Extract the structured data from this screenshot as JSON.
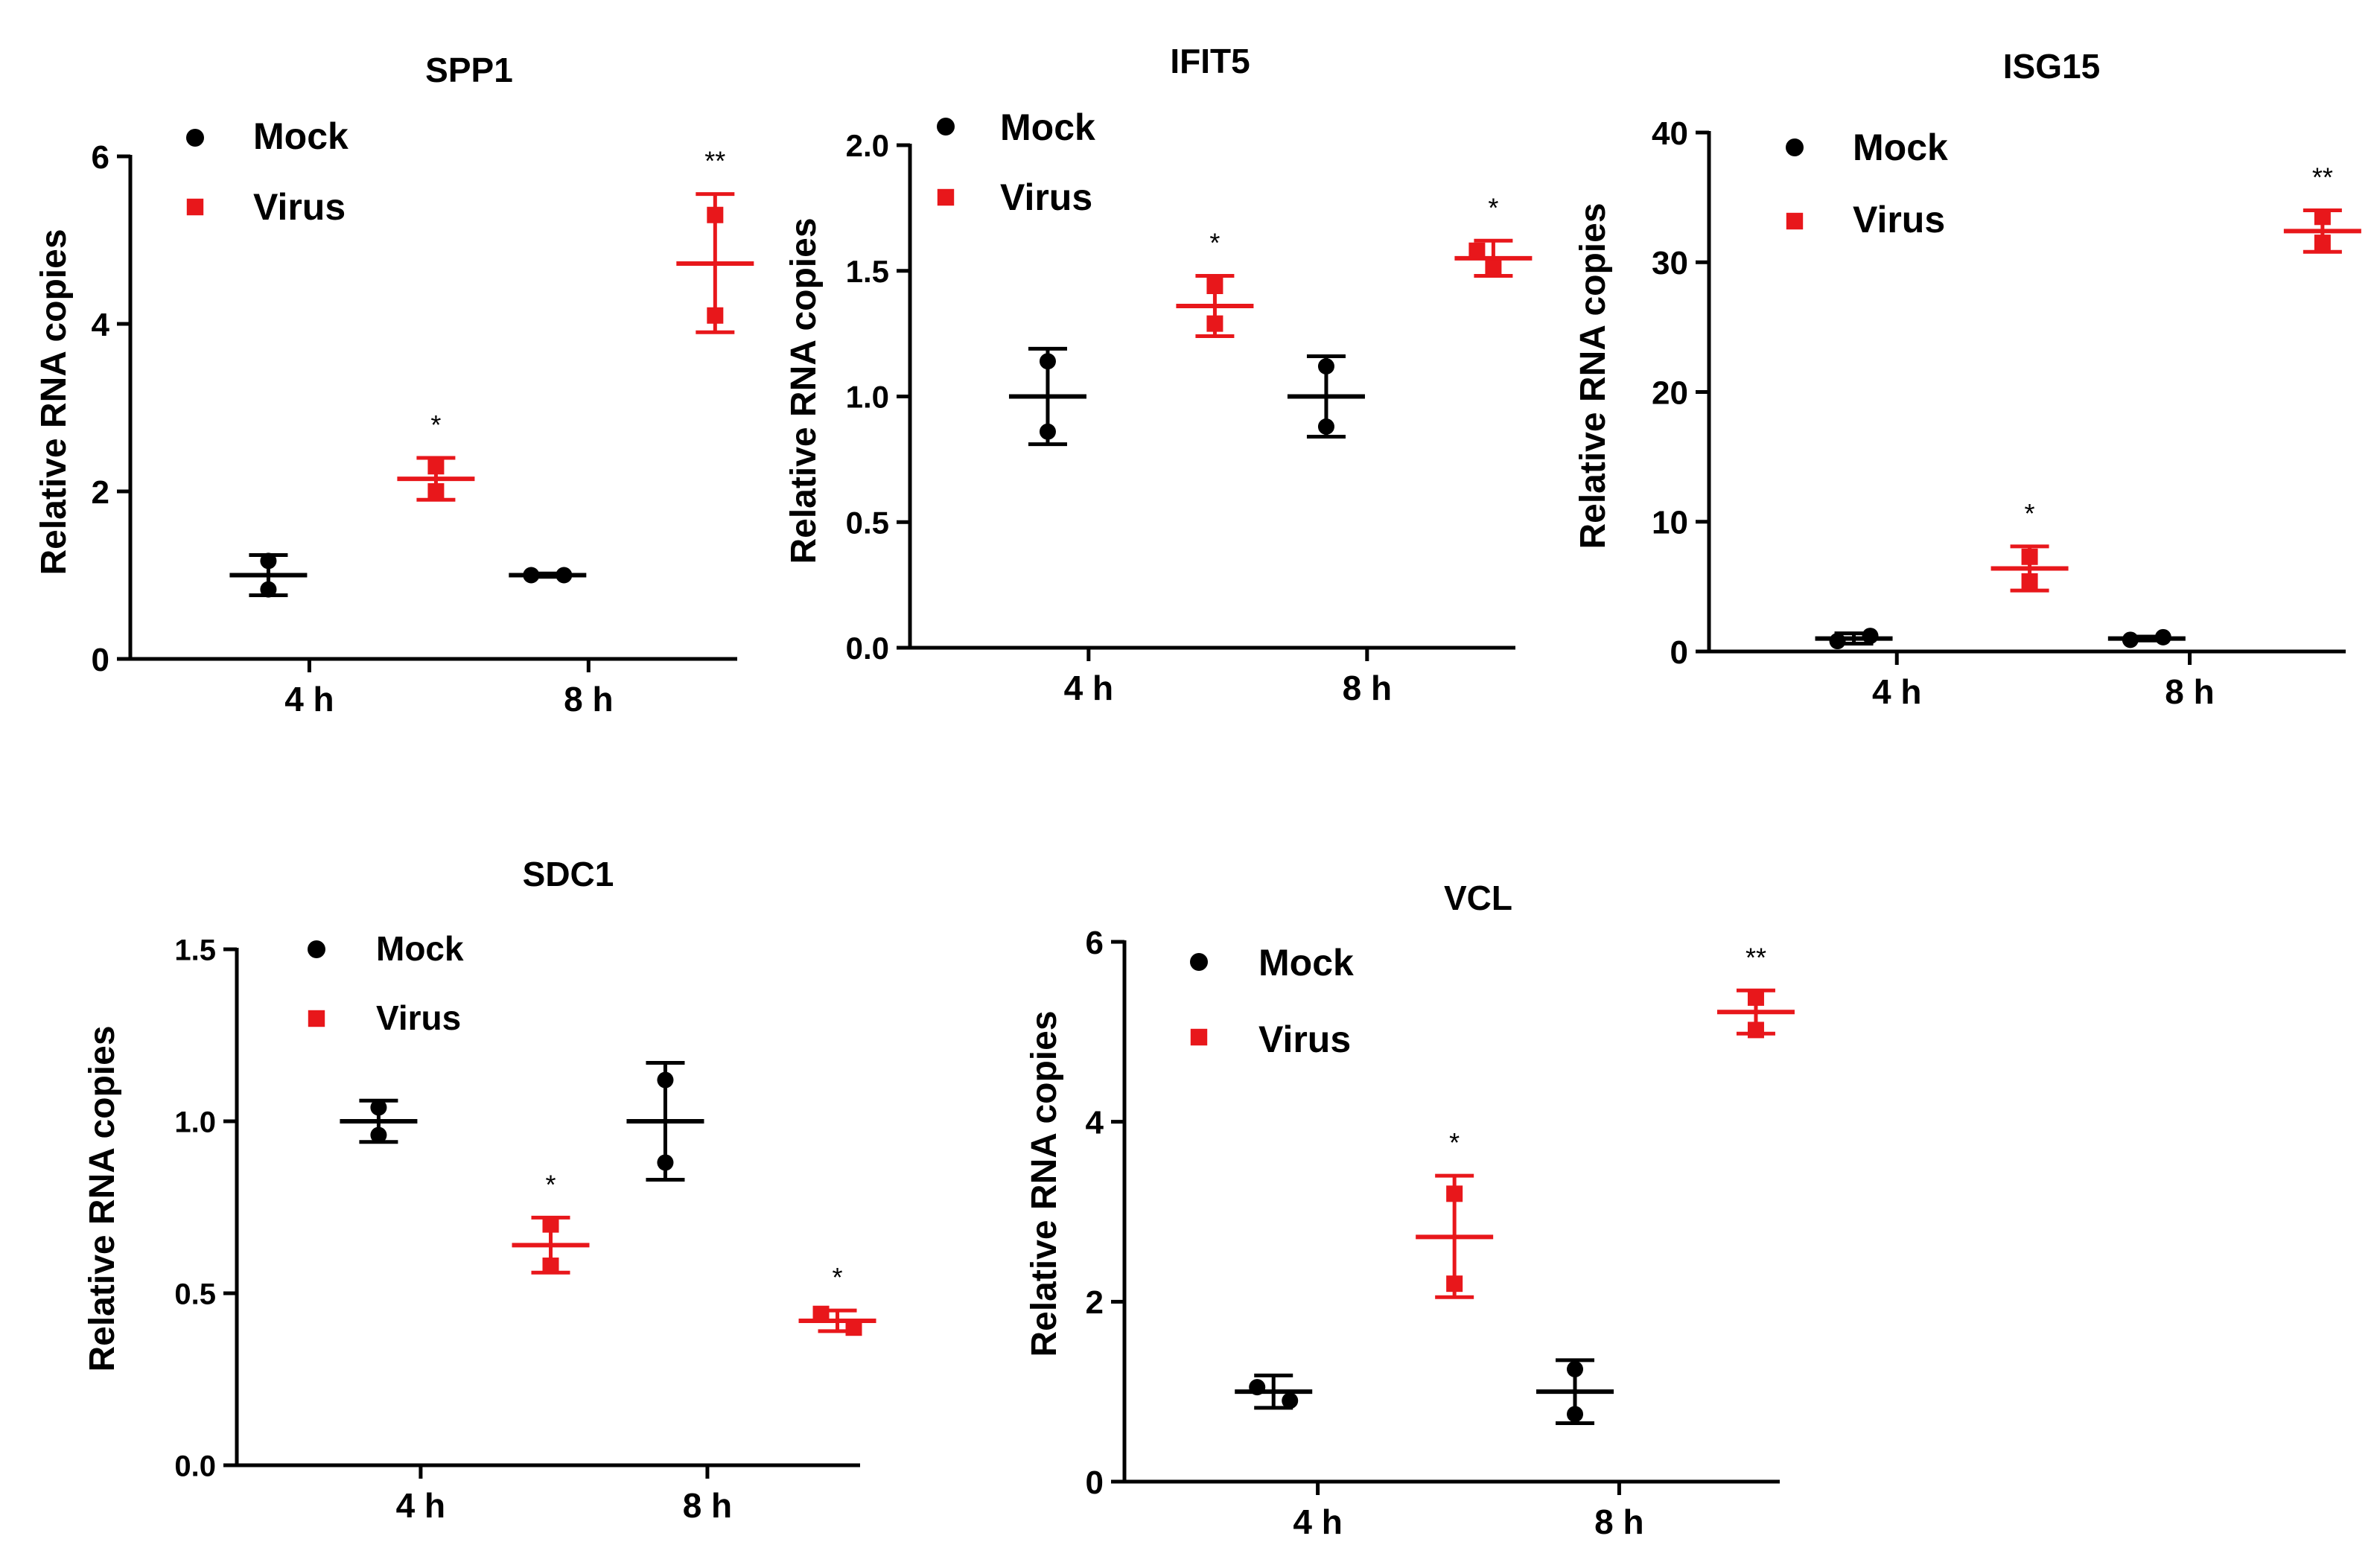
{
  "chart_data": [
    {
      "type": "scatter",
      "title": "SPP1",
      "ylabel": "Relative RNA copies",
      "xlabel": "",
      "categories": [
        "4 h",
        "8 h"
      ],
      "yticks": [
        "0",
        "2",
        "4",
        "6"
      ],
      "ylim": [
        0,
        6
      ],
      "legend": [
        "Mock",
        "Virus"
      ],
      "legend_position": "top-left",
      "series": [
        {
          "name": "Mock",
          "color": "#000000",
          "marker": "circle",
          "points": [
            [
              1.17,
              0.83
            ],
            [
              1.0,
              1.0
            ]
          ],
          "mean": [
            1.0,
            1.0
          ],
          "err_low": [
            0.76,
            0.98
          ],
          "err_high": [
            1.24,
            1.02
          ],
          "sig": [
            "",
            ""
          ]
        },
        {
          "name": "Virus",
          "color": "#e8171b",
          "marker": "square",
          "points": [
            [
              2.3,
              2.0
            ],
            [
              5.3,
              4.1
            ]
          ],
          "mean": [
            2.15,
            4.72
          ],
          "err_low": [
            1.9,
            3.9
          ],
          "err_high": [
            2.4,
            5.55
          ],
          "sig": [
            "*",
            "**"
          ]
        }
      ]
    },
    {
      "type": "scatter",
      "title": "IFIT5",
      "ylabel": "Relative RNA copies",
      "xlabel": "",
      "categories": [
        "4 h",
        "8 h"
      ],
      "yticks": [
        "0.0",
        "0.5",
        "1.0",
        "1.5",
        "2.0"
      ],
      "ylim": [
        0,
        2.0
      ],
      "legend": [
        "Mock",
        "Virus"
      ],
      "legend_position": "top-left",
      "series": [
        {
          "name": "Mock",
          "color": "#000000",
          "marker": "circle",
          "points": [
            [
              1.14,
              0.86
            ],
            [
              1.12,
              0.88
            ]
          ],
          "mean": [
            1.0,
            1.0
          ],
          "err_low": [
            0.81,
            0.84
          ],
          "err_high": [
            1.19,
            1.16
          ],
          "sig": [
            "",
            ""
          ]
        },
        {
          "name": "Virus",
          "color": "#e8171b",
          "marker": "square",
          "points": [
            [
              1.44,
              1.29
            ],
            [
              1.58,
              1.51
            ]
          ],
          "mean": [
            1.36,
            1.55
          ],
          "err_low": [
            1.24,
            1.48
          ],
          "err_high": [
            1.48,
            1.62
          ],
          "sig": [
            "*",
            "*"
          ]
        }
      ]
    },
    {
      "type": "scatter",
      "title": "ISG15",
      "ylabel": "Relative RNA copies",
      "xlabel": "",
      "categories": [
        "4 h",
        "8 h"
      ],
      "yticks": [
        "0",
        "10",
        "20",
        "30",
        "40"
      ],
      "ylim": [
        0,
        40
      ],
      "legend": [
        "Mock",
        "Virus"
      ],
      "legend_position": "top-left",
      "series": [
        {
          "name": "Mock",
          "color": "#000000",
          "marker": "circle",
          "points": [
            [
              0.8,
              1.2
            ],
            [
              0.9,
              1.1
            ]
          ],
          "mean": [
            1.0,
            1.0
          ],
          "err_low": [
            0.6,
            0.85
          ],
          "err_high": [
            1.4,
            1.15
          ],
          "sig": [
            "",
            ""
          ]
        },
        {
          "name": "Virus",
          "color": "#e8171b",
          "marker": "square",
          "points": [
            [
              7.3,
              5.4
            ],
            [
              33.5,
              31.5
            ]
          ],
          "mean": [
            6.4,
            32.4
          ],
          "err_low": [
            4.7,
            30.8
          ],
          "err_high": [
            8.1,
            34.0
          ],
          "sig": [
            "*",
            "**"
          ]
        }
      ]
    },
    {
      "type": "scatter",
      "title": "SDC1",
      "ylabel": "Relative RNA copies",
      "xlabel": "",
      "categories": [
        "4 h",
        "8 h"
      ],
      "yticks": [
        "0.0",
        "0.5",
        "1.0",
        "1.5"
      ],
      "ylim": [
        0,
        1.5
      ],
      "legend": [
        "Mock",
        "Virus"
      ],
      "legend_position": "top-left",
      "series": [
        {
          "name": "Mock",
          "color": "#000000",
          "marker": "circle",
          "points": [
            [
              1.04,
              0.96
            ],
            [
              1.12,
              0.88
            ]
          ],
          "mean": [
            1.0,
            1.0
          ],
          "err_low": [
            0.94,
            0.83
          ],
          "err_high": [
            1.06,
            1.17
          ],
          "sig": [
            "",
            ""
          ]
        },
        {
          "name": "Virus",
          "color": "#e8171b",
          "marker": "square",
          "points": [
            [
              0.7,
              0.58
            ],
            [
              0.44,
              0.4
            ]
          ],
          "mean": [
            0.64,
            0.42
          ],
          "err_low": [
            0.56,
            0.39
          ],
          "err_high": [
            0.72,
            0.45
          ],
          "sig": [
            "*",
            "*"
          ]
        }
      ]
    },
    {
      "type": "scatter",
      "title": "VCL",
      "ylabel": "Relative RNA copies",
      "xlabel": "",
      "categories": [
        "4 h",
        "8 h"
      ],
      "yticks": [
        "0",
        "2",
        "4",
        "6"
      ],
      "ylim": [
        0,
        6
      ],
      "legend": [
        "Mock",
        "Virus"
      ],
      "legend_position": "top-left",
      "series": [
        {
          "name": "Mock",
          "color": "#000000",
          "marker": "circle",
          "points": [
            [
              1.05,
              0.9
            ],
            [
              1.25,
              0.75
            ]
          ],
          "mean": [
            1.0,
            1.0
          ],
          "err_low": [
            0.82,
            0.65
          ],
          "err_high": [
            1.18,
            1.35
          ],
          "sig": [
            "",
            ""
          ]
        },
        {
          "name": "Virus",
          "color": "#e8171b",
          "marker": "square",
          "points": [
            [
              3.2,
              2.2
            ],
            [
              5.38,
              5.02
            ]
          ],
          "mean": [
            2.72,
            5.22
          ],
          "err_low": [
            2.05,
            4.98
          ],
          "err_high": [
            3.4,
            5.46
          ],
          "sig": [
            "*",
            "**"
          ]
        }
      ]
    }
  ]
}
